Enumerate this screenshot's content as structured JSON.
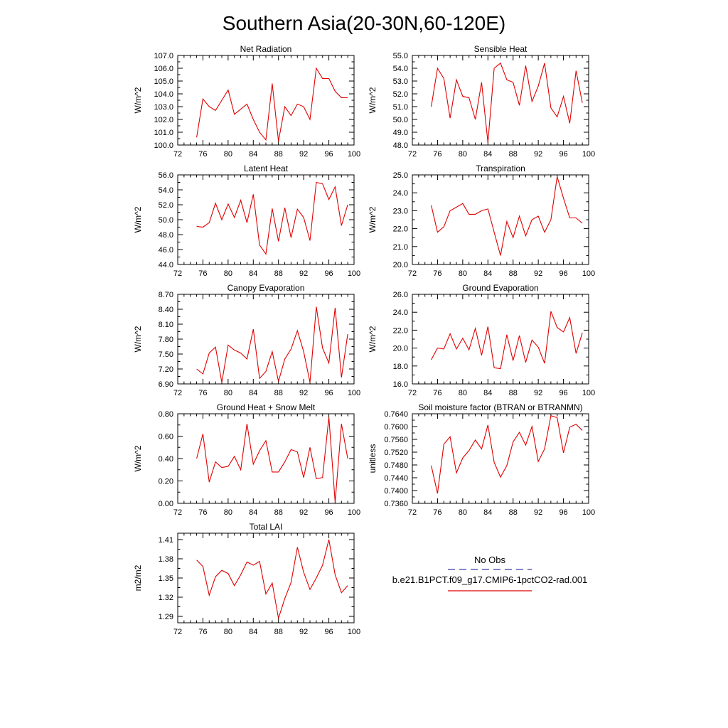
{
  "page_title": "Southern Asia(20-30N,60-120E)",
  "legend": {
    "obs_label": "No Obs",
    "model_label": "b.e21.B1PCT.f09_g17.CMIP6-1pctCO2-rad.001",
    "obs_color": "#3a3aa8",
    "model_color": "#e00000"
  },
  "chart_data": [
    {
      "type": "line",
      "title": "Net Radiation",
      "xlabel": "",
      "ylabel": "W/m^2",
      "xlim": [
        72,
        100
      ],
      "ylim": [
        100.0,
        107.0
      ],
      "decimals": 1,
      "xticks": [
        72,
        76,
        80,
        84,
        88,
        92,
        96,
        100
      ],
      "yticks": [
        100.0,
        101.0,
        102.0,
        103.0,
        104.0,
        105.0,
        106.0,
        107.0
      ],
      "series": [
        {
          "color": "#e00000",
          "x": [
            75,
            76,
            77,
            78,
            79,
            80,
            81,
            82,
            83,
            84,
            85,
            86,
            87,
            88,
            89,
            90,
            91,
            92,
            93,
            94,
            95,
            96,
            97,
            98,
            99
          ],
          "y": [
            100.6,
            103.6,
            103.0,
            102.7,
            103.5,
            104.3,
            102.4,
            102.8,
            103.2,
            102.0,
            101.0,
            100.4,
            104.8,
            100.3,
            103.0,
            102.3,
            103.2,
            103.0,
            102.0,
            106.0,
            105.2,
            105.2,
            104.2,
            103.7,
            103.7
          ]
        }
      ]
    },
    {
      "type": "line",
      "title": "Sensible Heat",
      "xlabel": "",
      "ylabel": "W/m^2",
      "xlim": [
        72,
        100
      ],
      "ylim": [
        48.0,
        55.0
      ],
      "decimals": 1,
      "xticks": [
        72,
        76,
        80,
        84,
        88,
        92,
        96,
        100
      ],
      "yticks": [
        48.0,
        49.0,
        50.0,
        51.0,
        52.0,
        53.0,
        54.0,
        55.0
      ],
      "series": [
        {
          "color": "#e00000",
          "x": [
            75,
            76,
            77,
            78,
            79,
            80,
            81,
            82,
            83,
            84,
            85,
            86,
            87,
            88,
            89,
            90,
            91,
            92,
            93,
            94,
            95,
            96,
            97,
            98,
            99
          ],
          "y": [
            51.0,
            54.0,
            53.2,
            50.1,
            53.1,
            51.8,
            51.7,
            50.0,
            52.9,
            48.2,
            54.0,
            54.4,
            53.1,
            52.9,
            51.1,
            54.2,
            51.4,
            52.6,
            54.4,
            50.9,
            50.2,
            51.8,
            49.7,
            53.8,
            51.3
          ]
        }
      ]
    },
    {
      "type": "line",
      "title": "Latent Heat",
      "xlabel": "",
      "ylabel": "W/m^2",
      "xlim": [
        72,
        100
      ],
      "ylim": [
        44.0,
        56.0
      ],
      "decimals": 1,
      "xticks": [
        72,
        76,
        80,
        84,
        88,
        92,
        96,
        100
      ],
      "yticks": [
        44.0,
        46.0,
        48.0,
        50.0,
        52.0,
        54.0,
        56.0
      ],
      "series": [
        {
          "color": "#e00000",
          "x": [
            75,
            76,
            77,
            78,
            79,
            80,
            81,
            82,
            83,
            84,
            85,
            86,
            87,
            88,
            89,
            90,
            91,
            92,
            93,
            94,
            95,
            96,
            97,
            98,
            99
          ],
          "y": [
            49.1,
            49.0,
            49.6,
            52.2,
            50.0,
            52.1,
            50.3,
            52.6,
            49.6,
            53.4,
            46.6,
            45.4,
            51.5,
            47.1,
            51.6,
            47.6,
            51.4,
            50.3,
            47.2,
            55.0,
            54.8,
            52.7,
            54.4,
            49.2,
            52.0
          ]
        }
      ]
    },
    {
      "type": "line",
      "title": "Transpiration",
      "xlabel": "",
      "ylabel": "W/m^2",
      "xlim": [
        72,
        100
      ],
      "ylim": [
        20.0,
        25.0
      ],
      "decimals": 1,
      "xticks": [
        72,
        76,
        80,
        84,
        88,
        92,
        96,
        100
      ],
      "yticks": [
        20.0,
        21.0,
        22.0,
        23.0,
        24.0,
        25.0
      ],
      "series": [
        {
          "color": "#e00000",
          "x": [
            75,
            76,
            77,
            78,
            79,
            80,
            81,
            82,
            83,
            84,
            85,
            86,
            87,
            88,
            89,
            90,
            91,
            92,
            93,
            94,
            95,
            96,
            97,
            98,
            99
          ],
          "y": [
            23.3,
            21.8,
            22.1,
            23.0,
            23.2,
            23.4,
            22.8,
            22.8,
            23.0,
            23.1,
            21.8,
            20.5,
            22.4,
            21.5,
            22.7,
            21.6,
            22.5,
            22.7,
            21.8,
            22.5,
            24.9,
            23.7,
            22.6,
            22.6,
            22.3
          ]
        }
      ]
    },
    {
      "type": "line",
      "title": "Canopy Evaporation",
      "xlabel": "",
      "ylabel": "W/m^2",
      "xlim": [
        72,
        100
      ],
      "ylim": [
        6.9,
        8.7
      ],
      "decimals": 2,
      "xticks": [
        72,
        76,
        80,
        84,
        88,
        92,
        96,
        100
      ],
      "yticks": [
        6.9,
        7.2,
        7.5,
        7.8,
        8.1,
        8.4,
        8.7
      ],
      "series": [
        {
          "color": "#e00000",
          "x": [
            75,
            76,
            77,
            78,
            79,
            80,
            81,
            82,
            83,
            84,
            85,
            86,
            87,
            88,
            89,
            90,
            91,
            92,
            93,
            94,
            95,
            96,
            97,
            98,
            99
          ],
          "y": [
            7.2,
            7.1,
            7.52,
            7.64,
            6.93,
            7.68,
            7.58,
            7.52,
            7.4,
            8.0,
            7.01,
            7.15,
            7.55,
            6.95,
            7.4,
            7.6,
            7.97,
            7.55,
            6.93,
            8.45,
            7.62,
            7.32,
            8.43,
            7.03,
            7.9
          ]
        }
      ]
    },
    {
      "type": "line",
      "title": "Ground Evaporation",
      "xlabel": "",
      "ylabel": "W/m^2",
      "xlim": [
        72,
        100
      ],
      "ylim": [
        16.0,
        26.0
      ],
      "decimals": 1,
      "xticks": [
        72,
        76,
        80,
        84,
        88,
        92,
        96,
        100
      ],
      "yticks": [
        16.0,
        18.0,
        20.0,
        22.0,
        24.0,
        26.0
      ],
      "series": [
        {
          "color": "#e00000",
          "x": [
            75,
            76,
            77,
            78,
            79,
            80,
            81,
            82,
            83,
            84,
            85,
            86,
            87,
            88,
            89,
            90,
            91,
            92,
            93,
            94,
            95,
            96,
            97,
            98,
            99
          ],
          "y": [
            18.7,
            20.0,
            19.9,
            21.6,
            19.9,
            21.1,
            19.8,
            22.2,
            19.2,
            22.4,
            17.8,
            17.7,
            21.5,
            18.6,
            21.4,
            18.4,
            20.9,
            20.1,
            18.3,
            24.1,
            22.3,
            21.8,
            23.4,
            19.4,
            21.7
          ]
        }
      ]
    },
    {
      "type": "line",
      "title": "Ground Heat + Snow Melt",
      "xlabel": "",
      "ylabel": "W/m^2",
      "xlim": [
        72,
        100
      ],
      "ylim": [
        0.0,
        0.8
      ],
      "decimals": 2,
      "xticks": [
        72,
        76,
        80,
        84,
        88,
        92,
        96,
        100
      ],
      "yticks": [
        0.0,
        0.2,
        0.4,
        0.6,
        0.8
      ],
      "series": [
        {
          "color": "#e00000",
          "x": [
            75,
            76,
            77,
            78,
            79,
            80,
            81,
            82,
            83,
            84,
            85,
            86,
            87,
            88,
            89,
            90,
            91,
            92,
            93,
            94,
            95,
            96,
            97,
            98,
            99
          ],
          "y": [
            0.4,
            0.62,
            0.19,
            0.37,
            0.32,
            0.33,
            0.42,
            0.3,
            0.71,
            0.35,
            0.47,
            0.56,
            0.28,
            0.28,
            0.37,
            0.48,
            0.46,
            0.23,
            0.5,
            0.22,
            0.23,
            0.77,
            0.01,
            0.71,
            0.4
          ]
        }
      ]
    },
    {
      "type": "line",
      "title": "Soil moisture factor (BTRAN or BTRANMN)",
      "xlabel": "",
      "ylabel": "unitless",
      "xlim": [
        72,
        100
      ],
      "ylim": [
        0.736,
        0.764
      ],
      "decimals": 4,
      "xticks": [
        72,
        76,
        80,
        84,
        88,
        92,
        96,
        100
      ],
      "yticks": [
        0.736,
        0.74,
        0.744,
        0.748,
        0.752,
        0.756,
        0.76,
        0.764
      ],
      "series": [
        {
          "color": "#e00000",
          "x": [
            75,
            76,
            77,
            78,
            79,
            80,
            81,
            82,
            83,
            84,
            85,
            86,
            87,
            88,
            89,
            90,
            91,
            92,
            93,
            94,
            95,
            96,
            97,
            98,
            99
          ],
          "y": [
            0.7478,
            0.7391,
            0.7545,
            0.7568,
            0.7455,
            0.7502,
            0.7525,
            0.7558,
            0.753,
            0.7605,
            0.7488,
            0.7442,
            0.7478,
            0.7552,
            0.7582,
            0.7542,
            0.76,
            0.7491,
            0.753,
            0.7634,
            0.7628,
            0.7518,
            0.7598,
            0.7607,
            0.7588
          ]
        }
      ]
    },
    {
      "type": "line",
      "title": "Total LAI",
      "xlabel": "",
      "ylabel": "m2/m2",
      "xlim": [
        72,
        100
      ],
      "ylim": [
        1.28,
        1.42
      ],
      "decimals": 2,
      "xticks": [
        72,
        76,
        80,
        84,
        88,
        92,
        96,
        100
      ],
      "yticks": [
        1.29,
        1.32,
        1.35,
        1.38,
        1.41
      ],
      "series": [
        {
          "color": "#e00000",
          "x": [
            75,
            76,
            77,
            78,
            79,
            80,
            81,
            82,
            83,
            84,
            85,
            86,
            87,
            88,
            89,
            90,
            91,
            92,
            93,
            94,
            95,
            96,
            97,
            98,
            99
          ],
          "y": [
            1.378,
            1.368,
            1.323,
            1.352,
            1.362,
            1.357,
            1.338,
            1.355,
            1.375,
            1.37,
            1.376,
            1.325,
            1.342,
            1.287,
            1.318,
            1.343,
            1.398,
            1.359,
            1.332,
            1.35,
            1.37,
            1.41,
            1.355,
            1.327,
            1.338
          ]
        }
      ]
    }
  ]
}
